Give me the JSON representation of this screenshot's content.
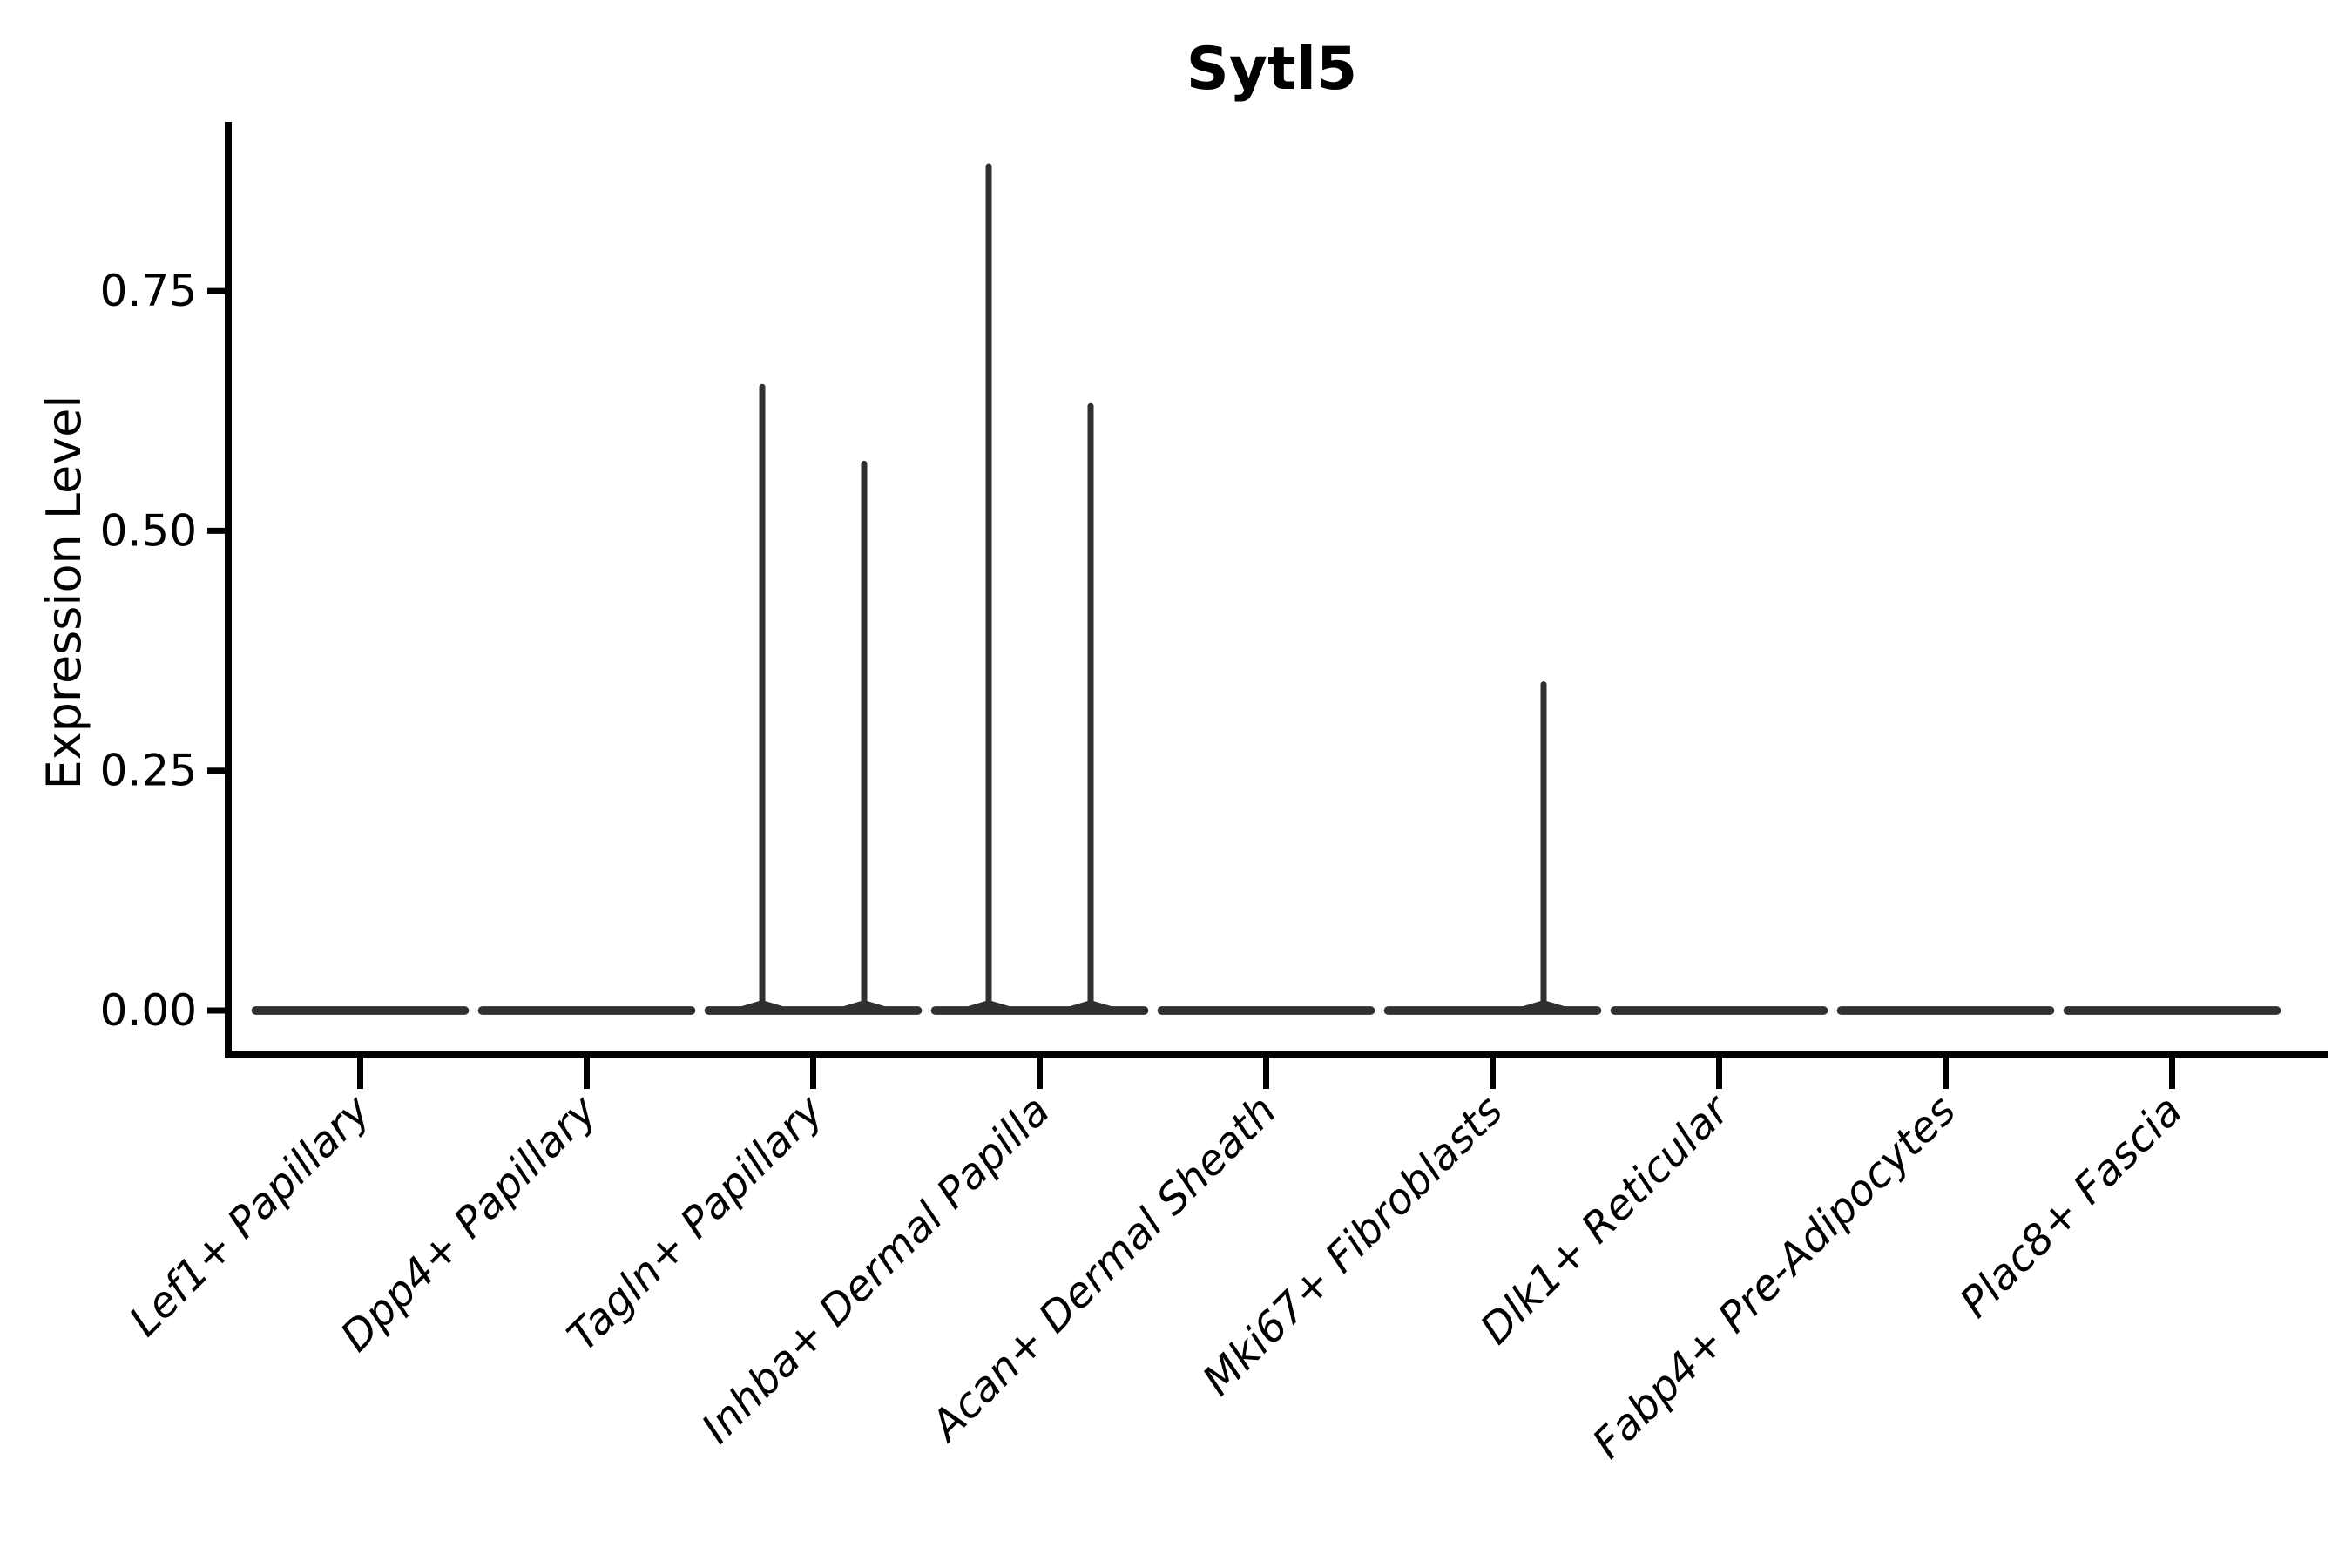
{
  "figure": {
    "title": "Sytl5",
    "background": "#ffffff"
  },
  "chart_data": {
    "type": "violin",
    "title": "Sytl5",
    "ylabel": "Expression Level",
    "xlabel": "",
    "ylim": [
      0,
      0.93
    ],
    "ytick_labels": [
      "0.00",
      "0.25",
      "0.50",
      "0.75"
    ],
    "ytick_values": [
      0,
      0.25,
      0.5,
      0.75
    ],
    "grid": false,
    "legend": "none",
    "categories": [
      "Lef1+ Papillary",
      "Dpp4+ Papillary",
      "Tagln+ Papillary",
      "Inhba+ Dermal Papilla",
      "Acan+ Dermal Sheath",
      "Mki67+ Fibroblasts",
      "Dlk1+ Reticular",
      "Fabp4+ Pre-Adipocytes",
      "Plac8+ Fascia"
    ],
    "groups_per_category": 2,
    "series": [
      {
        "name": "left-subviolin",
        "max_expression": [
          0,
          0,
          0.65,
          0.88,
          0,
          0,
          0,
          0,
          0
        ]
      },
      {
        "name": "right-subviolin",
        "max_expression": [
          0,
          0,
          0.57,
          0.63,
          0,
          0.34,
          0,
          0,
          0
        ]
      }
    ],
    "colors": {
      "violin": "#303030",
      "axis": "#000000",
      "text": "#000000",
      "background": "#ffffff"
    }
  }
}
